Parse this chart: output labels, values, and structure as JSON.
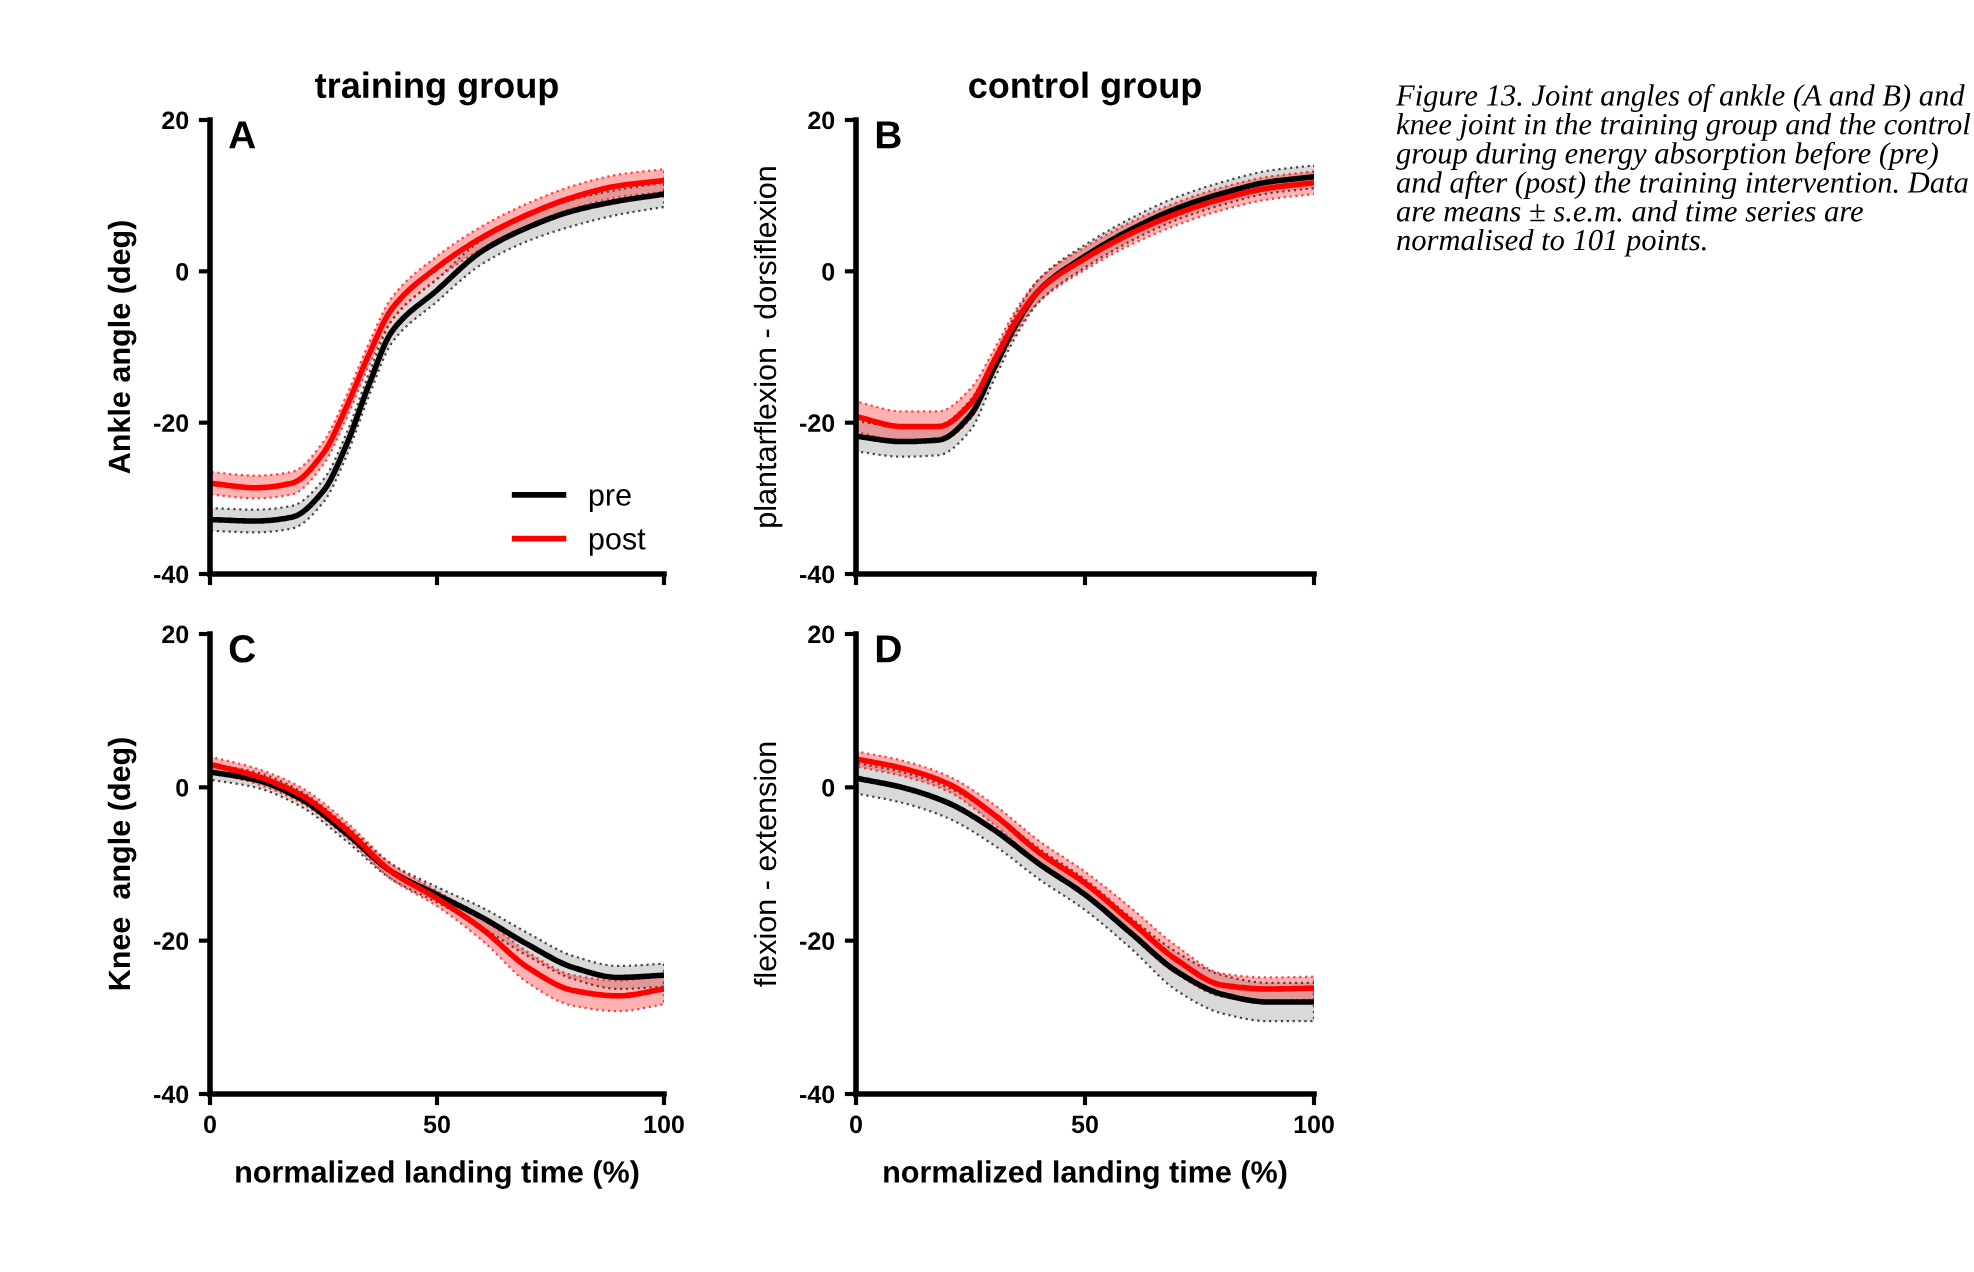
{
  "chart_data": [
    {
      "type": "line",
      "title": "training group",
      "ylabel": "Ankle angle (deg)",
      "annotations": [
        "A"
      ],
      "xlim": [
        0,
        100
      ],
      "xticks": [
        0,
        50,
        100
      ],
      "ylim": [
        -40,
        20
      ],
      "yticks": [
        -40,
        -20,
        0,
        20
      ],
      "tick_labels": "y",
      "grid": false,
      "legend": "bottom right",
      "line_style": "solid",
      "marker": "none",
      "x": [
        0,
        10,
        18,
        25,
        30,
        35,
        40,
        50,
        60,
        70,
        80,
        90,
        100
      ],
      "series": [
        {
          "name": "pre",
          "color": "#000000",
          "values": [
            -32.8,
            -33,
            -32.5,
            -29,
            -23,
            -15,
            -8,
            -2.5,
            2.7,
            5.8,
            8,
            9.3,
            10.2
          ],
          "lower": [
            -34.3,
            -34.5,
            -34,
            -30.5,
            -24.5,
            -16.5,
            -9.5,
            -4,
            1,
            4,
            6,
            7.5,
            8.5
          ],
          "upper": [
            -31.3,
            -31.5,
            -31,
            -27.5,
            -21.5,
            -13.5,
            -6.5,
            -1,
            4.2,
            7.3,
            9.5,
            10.8,
            11.7
          ]
        },
        {
          "name": "post",
          "color": "#ff0000",
          "values": [
            -28,
            -28.6,
            -28,
            -24,
            -18,
            -11,
            -5,
            0.5,
            4.5,
            7.5,
            9.8,
            11.3,
            12
          ],
          "lower": [
            -29.5,
            -30,
            -29.5,
            -25.5,
            -19.5,
            -12.5,
            -6.5,
            -1,
            3,
            6,
            8.3,
            9.8,
            10.5
          ],
          "upper": [
            -26.5,
            -27,
            -26.5,
            -22.5,
            -16.5,
            -9.5,
            -3.5,
            2,
            6,
            9,
            11.3,
            12.8,
            13.5
          ]
        }
      ]
    },
    {
      "type": "line",
      "title": "control group",
      "ylabel": "plantarflexion - dorsiflexion",
      "annotations": [
        "B",
        "Figure 13. Joint angles of ankle (A and B) and knee joint in the training group and the control group during energy absorption before (pre) and after (post) the training intervention. Data are means ± s.e.m. and time series are normalised to 101 points."
      ],
      "xlim": [
        0,
        100
      ],
      "xticks": [
        0,
        50,
        100
      ],
      "ylim": [
        -40,
        20
      ],
      "yticks": [
        -40,
        -20,
        0,
        20
      ],
      "tick_labels": "y",
      "grid": false,
      "line_style": "solid",
      "marker": "none",
      "x": [
        0,
        10,
        18,
        25,
        30,
        35,
        40,
        50,
        60,
        70,
        80,
        90,
        100
      ],
      "series": [
        {
          "color": "#000000",
          "values": [
            -21.8,
            -22.5,
            -22.3,
            -19,
            -13,
            -7,
            -2.5,
            2,
            5.5,
            8.3,
            10.3,
            11.8,
            12.5
          ],
          "lower": [
            -23.8,
            -24.5,
            -24.3,
            -21,
            -14.5,
            -8.5,
            -4,
            0.5,
            4,
            6.8,
            8.8,
            10.3,
            11
          ],
          "upper": [
            -19.8,
            -20.5,
            -20.3,
            -17,
            -11.5,
            -5.5,
            -1,
            3.5,
            7,
            9.8,
            11.8,
            13.3,
            14
          ]
        },
        {
          "color": "#ff0000",
          "values": [
            -19.2,
            -20.5,
            -20.5,
            -17.5,
            -12,
            -6.5,
            -2.5,
            1.7,
            5,
            7.6,
            9.6,
            11,
            11.7
          ],
          "lower": [
            -21.2,
            -22.5,
            -22.5,
            -19.5,
            -13.5,
            -8,
            -4,
            0.2,
            3.5,
            6.1,
            8.1,
            9.5,
            10.2
          ],
          "upper": [
            -17.2,
            -18.5,
            -18.5,
            -15.5,
            -10.5,
            -5,
            -1,
            3.2,
            6.5,
            9.1,
            11.1,
            12.5,
            13.2
          ]
        }
      ]
    },
    {
      "type": "line",
      "xlabel": "normalized landing time (%)",
      "ylabel": "Knee  angle (deg)",
      "annotations": [
        "C"
      ],
      "xlim": [
        0,
        100
      ],
      "xticks": [
        0,
        50,
        100
      ],
      "ylim": [
        -40,
        20
      ],
      "yticks": [
        -40,
        -20,
        0,
        20
      ],
      "grid": false,
      "line_style": "solid",
      "marker": "none",
      "x": [
        0,
        10,
        20,
        30,
        40,
        50,
        60,
        70,
        80,
        90,
        100
      ],
      "series": [
        {
          "color": "#000000",
          "values": [
            2,
            1,
            -1.5,
            -6,
            -11,
            -14,
            -17,
            -20.5,
            -23.5,
            -24.8,
            -24.5
          ],
          "lower": [
            1,
            0,
            -2.5,
            -7,
            -12,
            -15,
            -18.3,
            -22,
            -25,
            -26.3,
            -26
          ],
          "upper": [
            3,
            2,
            -0.5,
            -5,
            -10,
            -13,
            -15.7,
            -19,
            -22,
            -23.3,
            -23
          ]
        },
        {
          "color": "#ff0000",
          "values": [
            3,
            1.5,
            -1,
            -5.5,
            -11,
            -14.5,
            -18.5,
            -23.5,
            -26.5,
            -27.2,
            -26.3
          ],
          "lower": [
            2,
            0.5,
            -2,
            -6.5,
            -12,
            -15.5,
            -20,
            -25.5,
            -28.5,
            -29.2,
            -28.3
          ],
          "upper": [
            4,
            2.5,
            0,
            -4.5,
            -10,
            -13.5,
            -17,
            -21.5,
            -24.5,
            -25.2,
            -24.3
          ]
        }
      ]
    },
    {
      "type": "line",
      "xlabel": "normalized landing time (%)",
      "ylabel": "flexion - extension",
      "annotations": [
        "D"
      ],
      "xlim": [
        0,
        100
      ],
      "xticks": [
        0,
        50,
        100
      ],
      "ylim": [
        -40,
        20
      ],
      "yticks": [
        -40,
        -20,
        0,
        20
      ],
      "grid": false,
      "line_style": "solid",
      "marker": "none",
      "x": [
        0,
        10,
        20,
        30,
        40,
        50,
        60,
        70,
        80,
        90,
        100
      ],
      "series": [
        {
          "color": "#000000",
          "values": [
            1.2,
            0,
            -2,
            -5.5,
            -10,
            -14,
            -19,
            -24,
            -27,
            -28,
            -28
          ],
          "lower": [
            -0.8,
            -2,
            -4,
            -7.5,
            -12,
            -16,
            -21,
            -26.5,
            -29.5,
            -30.5,
            -30.5
          ],
          "upper": [
            3.2,
            2,
            0,
            -3.5,
            -8,
            -12,
            -17,
            -21.5,
            -24.5,
            -25.5,
            -25.5
          ]
        },
        {
          "color": "#ff0000",
          "values": [
            3.7,
            2.5,
            0.5,
            -3.5,
            -8.5,
            -12.5,
            -17.5,
            -22.5,
            -25.8,
            -26.3,
            -26.2
          ],
          "lower": [
            2.7,
            1.5,
            -0.5,
            -4.8,
            -10,
            -14,
            -19.3,
            -24.3,
            -27.3,
            -27.8,
            -27.7
          ],
          "upper": [
            4.7,
            3.5,
            1.5,
            -2.2,
            -7,
            -11,
            -15.7,
            -20.7,
            -24.3,
            -24.8,
            -24.7
          ]
        }
      ]
    }
  ]
}
